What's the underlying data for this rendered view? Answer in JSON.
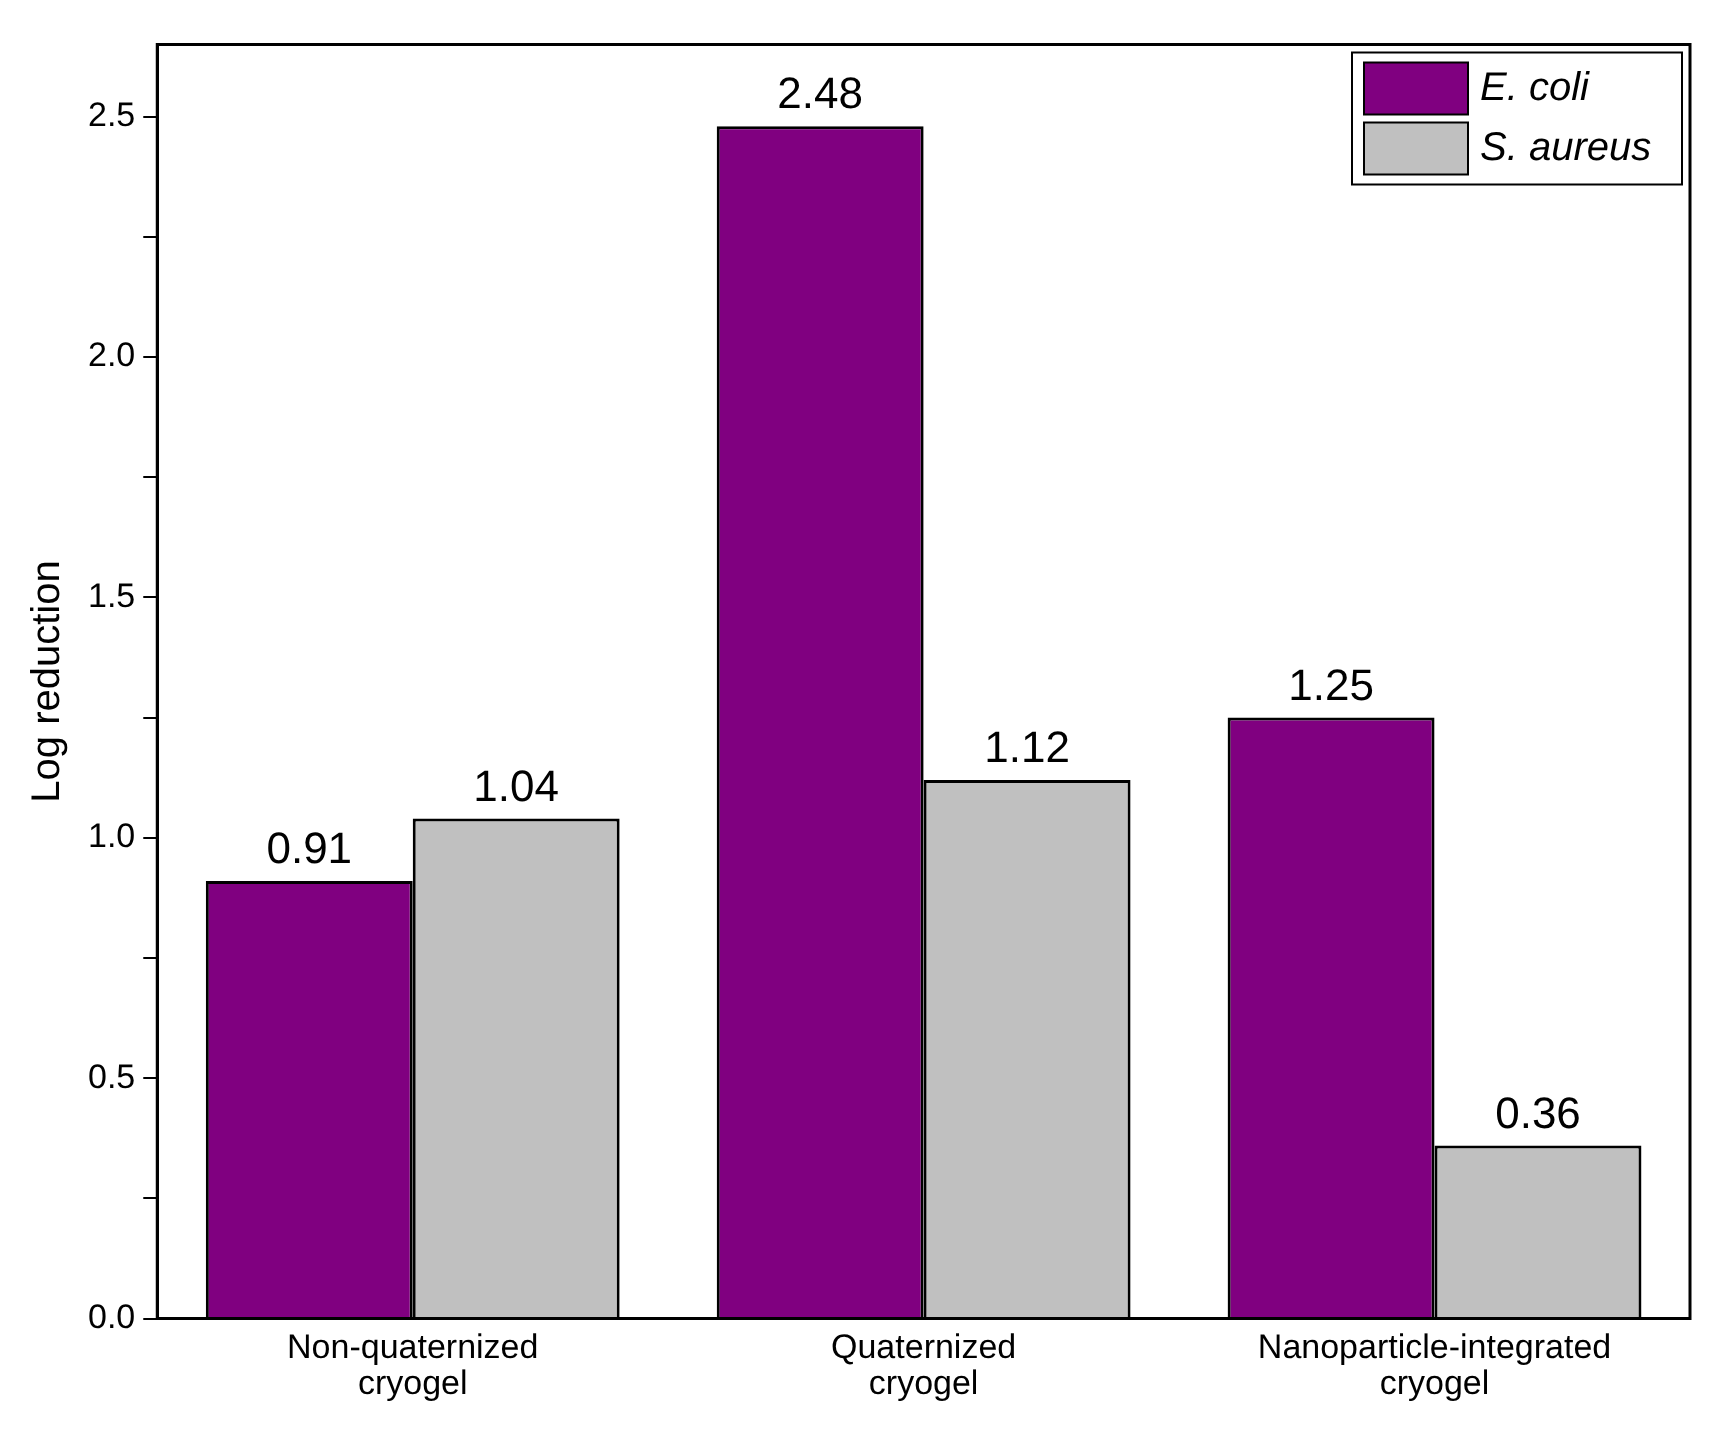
{
  "chart_data": {
    "type": "bar",
    "ylabel": "Log reduction",
    "categories": [
      "Non-quaternized cryogel",
      "Quaternized cryogel",
      "Nanoparticle-integrated cryogel"
    ],
    "series": [
      {
        "name": "E. coli",
        "color": "#800080",
        "values": [
          0.91,
          2.48,
          1.25
        ]
      },
      {
        "name": "S. aureus",
        "color": "#c0c0c0",
        "values": [
          1.04,
          1.12,
          0.36
        ]
      }
    ],
    "ylim": [
      0,
      2.65
    ],
    "yticks": [
      {
        "value": 0,
        "label": "0.0"
      },
      {
        "value": 0.25,
        "label": null
      },
      0.5,
      {
        "value": 0.75,
        "label": null
      },
      {
        "value": 1,
        "label": "1.0"
      },
      {
        "value": 1.25,
        "label": null
      },
      1.5,
      {
        "value": 1.75,
        "label": null
      },
      {
        "value": 2,
        "label": "2.0"
      },
      {
        "value": 2.25,
        "label": null
      },
      2.5
    ],
    "data_labels": true,
    "legend": "top right",
    "grid": false
  }
}
